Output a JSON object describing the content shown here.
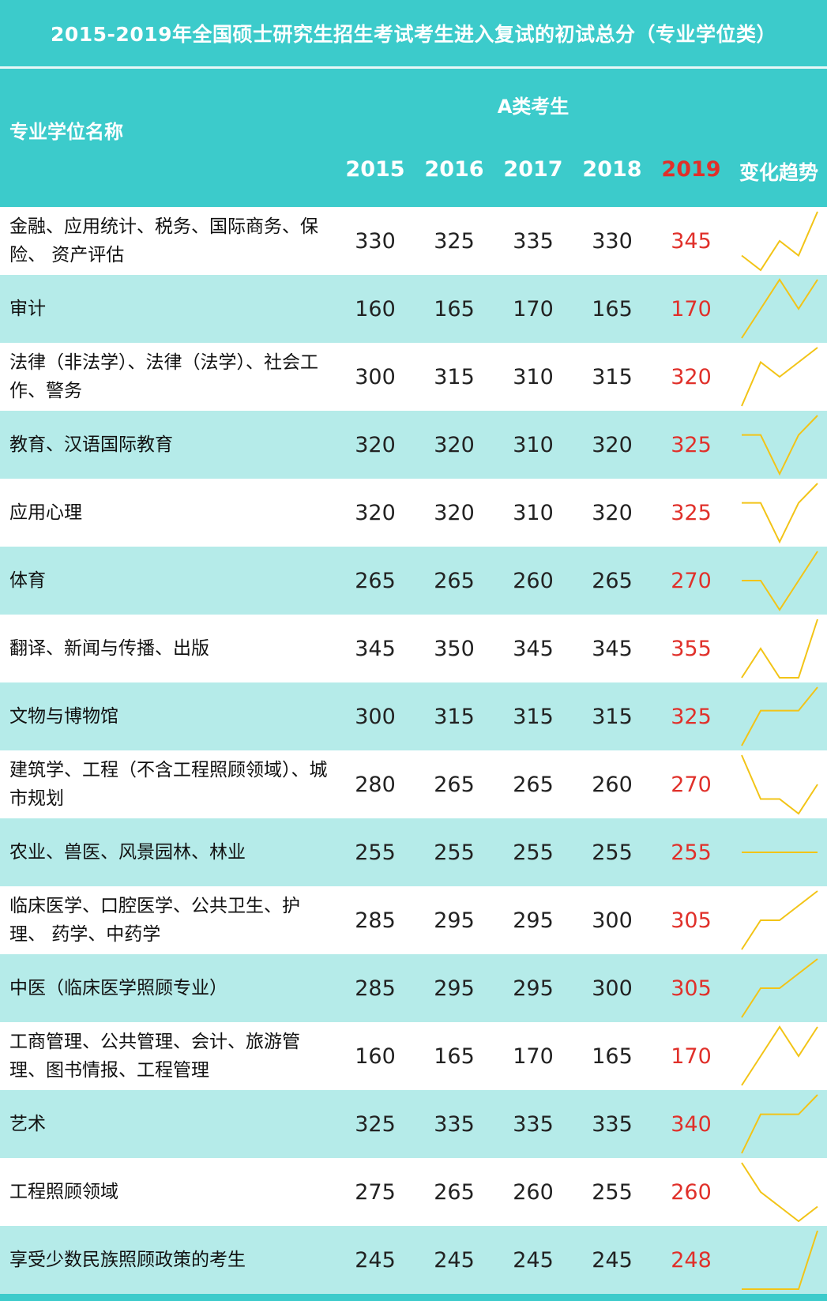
{
  "title": "2015-2019年全国硕士研究生招生考试考生进入复试的初试总分（专业学位类）",
  "header": {
    "name_col": "专业学位名称",
    "group": "A类考生",
    "years": [
      "2015",
      "2016",
      "2017",
      "2018",
      "2019"
    ],
    "trend_col": "变化趋势"
  },
  "colors": {
    "header": "#3ccbcb",
    "stripe": "#b5ebe9",
    "highlight": "#e0302a",
    "trend_line": "#f2c417"
  },
  "rows": [
    {
      "name": "金融、应用统计、税务、国际商务、保险、 资产评估",
      "values": [
        330,
        325,
        335,
        330,
        345
      ]
    },
    {
      "name": "审计",
      "values": [
        160,
        165,
        170,
        165,
        170
      ]
    },
    {
      "name": "法律（非法学）、法律（法学）、社会工作、警务",
      "values": [
        300,
        315,
        310,
        315,
        320
      ]
    },
    {
      "name": "教育、汉语国际教育",
      "values": [
        320,
        320,
        310,
        320,
        325
      ]
    },
    {
      "name": "应用心理",
      "values": [
        320,
        320,
        310,
        320,
        325
      ]
    },
    {
      "name": "体育",
      "values": [
        265,
        265,
        260,
        265,
        270
      ]
    },
    {
      "name": "翻译、新闻与传播、出版",
      "values": [
        345,
        350,
        345,
        345,
        355
      ]
    },
    {
      "name": "文物与博物馆",
      "values": [
        300,
        315,
        315,
        315,
        325
      ]
    },
    {
      "name": "建筑学、工程（不含工程照顾领域）、城市规划",
      "values": [
        280,
        265,
        265,
        260,
        270
      ]
    },
    {
      "name": "农业、兽医、风景园林、林业",
      "values": [
        255,
        255,
        255,
        255,
        255
      ]
    },
    {
      "name": "临床医学、口腔医学、公共卫生、护理、 药学、中药学",
      "values": [
        285,
        295,
        295,
        300,
        305
      ]
    },
    {
      "name": "中医（临床医学照顾专业）",
      "values": [
        285,
        295,
        295,
        300,
        305
      ]
    },
    {
      "name": "工商管理、公共管理、会计、旅游管理、图书情报、工程管理",
      "values": [
        160,
        165,
        170,
        165,
        170
      ]
    },
    {
      "name": "艺术",
      "values": [
        325,
        335,
        335,
        335,
        340
      ]
    },
    {
      "name": "工程照顾领域",
      "values": [
        275,
        265,
        260,
        255,
        260
      ]
    },
    {
      "name": "享受少数民族照顾政策的考生",
      "values": [
        245,
        245,
        245,
        245,
        248
      ]
    }
  ]
}
